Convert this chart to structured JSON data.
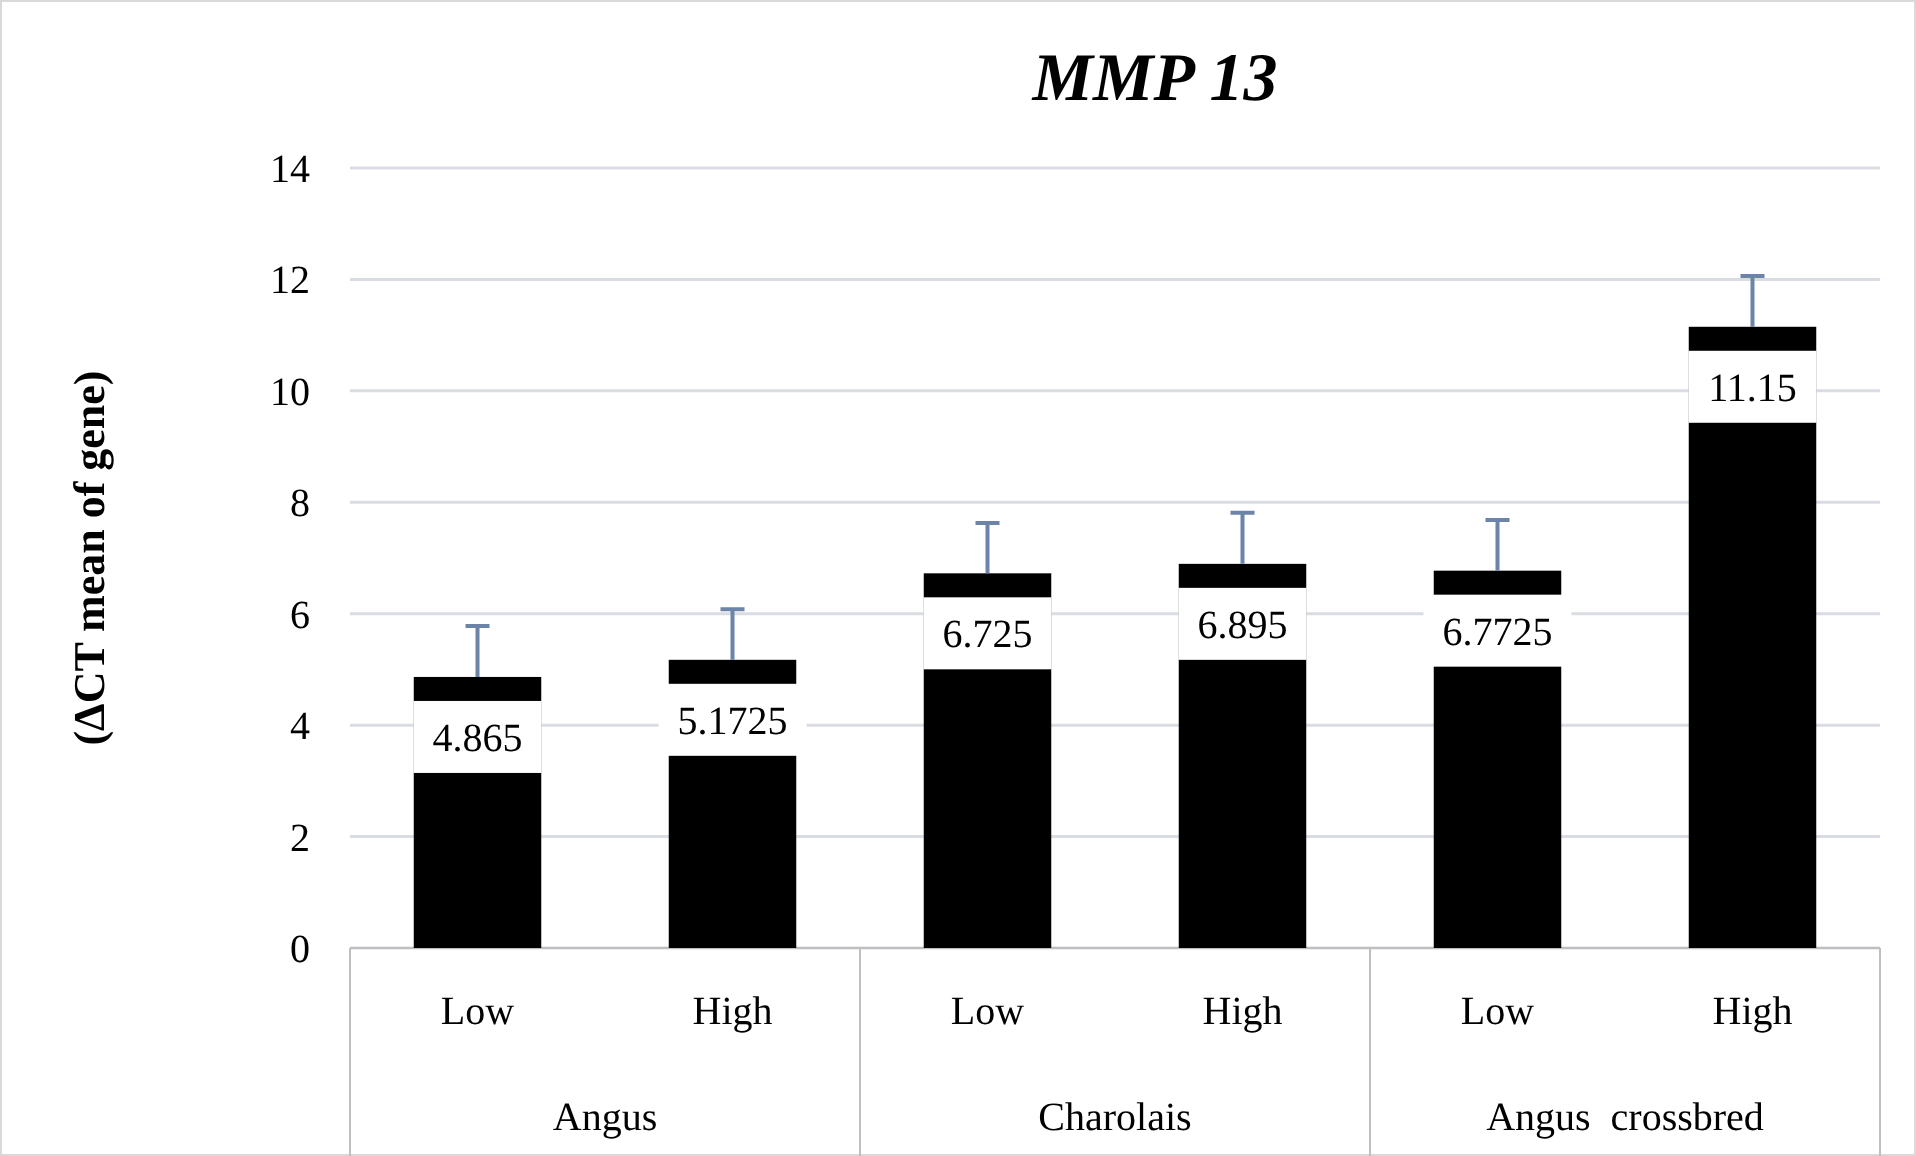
{
  "chart_data": {
    "type": "bar",
    "title": "MMP 13",
    "ylabel": "(ΔCT mean of gene)",
    "categories": [
      "Low",
      "High",
      "Low",
      "High",
      "Low",
      "High"
    ],
    "values": [
      4.865,
      5.1725,
      6.725,
      6.895,
      6.7725,
      11.15
    ],
    "errors": [
      [
        4.865,
        5.78
      ],
      [
        5.1725,
        6.08
      ],
      [
        6.725,
        7.63
      ],
      [
        6.895,
        7.81
      ],
      [
        6.7725,
        7.68
      ],
      [
        11.15,
        12.06
      ]
    ],
    "color": "#000000",
    "ylim": [
      0,
      14
    ],
    "yticks": [
      0,
      2,
      4,
      6,
      8,
      10,
      12,
      14
    ],
    "grid": "y",
    "data_labels": true,
    "annotations": [
      "Angus",
      "Charolais",
      "Angus  crossbred"
    ]
  }
}
